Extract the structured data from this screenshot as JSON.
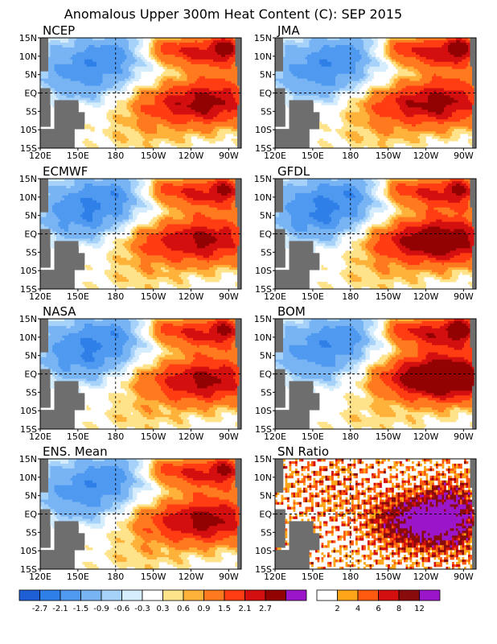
{
  "title": "Anomalous Upper 300m Heat Content (C): SEP 2015",
  "x_ticks": [
    "120E",
    "150E",
    "180",
    "150W",
    "120W",
    "90W"
  ],
  "y_ticks": [
    "15N",
    "10N",
    "5N",
    "EQ",
    "5S",
    "10S",
    "15S"
  ],
  "colors": {
    "land": "#6e6e6e",
    "neg": [
      "#1e5fd6",
      "#2f7fe8",
      "#4f9af0",
      "#78b4f4",
      "#a6d2fa",
      "#d5ecfd"
    ],
    "pos": [
      "#ffffff",
      "#ffe38a",
      "#ffb23a",
      "#ff7a1f",
      "#ff3c12",
      "#d40f0f",
      "#930202",
      "#9a16c8"
    ],
    "sn": [
      "#ffffff",
      "#ffa51a",
      "#ff5a10",
      "#d40f0f",
      "#8a0b0b",
      "#9a16c8"
    ]
  },
  "colorbar_anomaly": {
    "ticks": [
      "-2.7",
      "-2.1",
      "-1.5",
      "-0.9",
      "-0.6",
      "-0.3",
      "0.3",
      "0.6",
      "0.9",
      "1.5",
      "2.1",
      "2.7"
    ]
  },
  "colorbar_sn": {
    "ticks": [
      "2",
      "4",
      "6",
      "8",
      "12"
    ]
  },
  "chart_data": [
    {
      "type": "heatmap",
      "label": "NCEP",
      "x_range": [
        "120E",
        "80W"
      ],
      "ylim": [
        "15S",
        "15N"
      ],
      "units": "C",
      "features": {
        "warm_core_lon": -125,
        "warm_core_lat": -3,
        "warm_core_max": 2.3,
        "cold_west_min": -2.0,
        "north_warm_band_max": 2.2,
        "ne_pocket_max": 2.8
      }
    },
    {
      "type": "heatmap",
      "label": "JMA",
      "x_range": [
        "120E",
        "80W"
      ],
      "ylim": [
        "15S",
        "15N"
      ],
      "units": "C",
      "features": {
        "warm_core_lon": -128,
        "warm_core_lat": -3,
        "warm_core_max": 2.4,
        "cold_west_min": -2.0,
        "north_warm_band_max": 2.3,
        "ne_pocket_max": 2.8
      }
    },
    {
      "type": "heatmap",
      "label": "ECMWF",
      "x_range": [
        "120E",
        "80W"
      ],
      "ylim": [
        "15S",
        "15N"
      ],
      "units": "C",
      "features": {
        "warm_core_lon": -130,
        "warm_core_lat": -2,
        "warm_core_max": 2.3,
        "cold_west_min": -2.2,
        "north_warm_band_max": 2.1,
        "ne_pocket_max": 2.0
      }
    },
    {
      "type": "heatmap",
      "label": "GFDL",
      "x_range": [
        "120E",
        "80W"
      ],
      "ylim": [
        "15S",
        "15N"
      ],
      "units": "C",
      "features": {
        "warm_core_lon": -122,
        "warm_core_lat": -2,
        "warm_core_max": 2.9,
        "cold_west_min": -2.3,
        "north_warm_band_max": 2.1,
        "ne_pocket_max": 2.0
      }
    },
    {
      "type": "heatmap",
      "label": "NASA",
      "x_range": [
        "120E",
        "80W"
      ],
      "ylim": [
        "15S",
        "15N"
      ],
      "units": "C",
      "features": {
        "warm_core_lon": -125,
        "warm_core_lat": -2,
        "warm_core_max": 2.2,
        "cold_west_min": -2.2,
        "north_warm_band_max": 2.1,
        "ne_pocket_max": 2.0
      }
    },
    {
      "type": "heatmap",
      "label": "BOM",
      "x_range": [
        "120E",
        "80W"
      ],
      "ylim": [
        "15S",
        "15N"
      ],
      "units": "C",
      "features": {
        "warm_core_lon": -115,
        "warm_core_lat": -1,
        "warm_core_max": 3.3,
        "cold_west_min": -2.0,
        "north_warm_band_max": 2.4,
        "ne_pocket_max": 3.0
      }
    },
    {
      "type": "heatmap",
      "label": "ENS. Mean",
      "x_range": [
        "120E",
        "80W"
      ],
      "ylim": [
        "15S",
        "15N"
      ],
      "units": "C",
      "features": {
        "warm_core_lon": -125,
        "warm_core_lat": -2,
        "warm_core_max": 2.3,
        "cold_west_min": -2.0,
        "north_warm_band_max": 2.1,
        "ne_pocket_max": 2.0
      }
    },
    {
      "type": "heatmap",
      "label": "SN Ratio",
      "x_range": [
        "120E",
        "80W"
      ],
      "ylim": [
        "15S",
        "15N"
      ],
      "units": "ratio",
      "features": {
        "high_sn_region": "central-eastern equatorial Pacific",
        "max_ratio": 14,
        "scattered_west": true
      }
    }
  ]
}
